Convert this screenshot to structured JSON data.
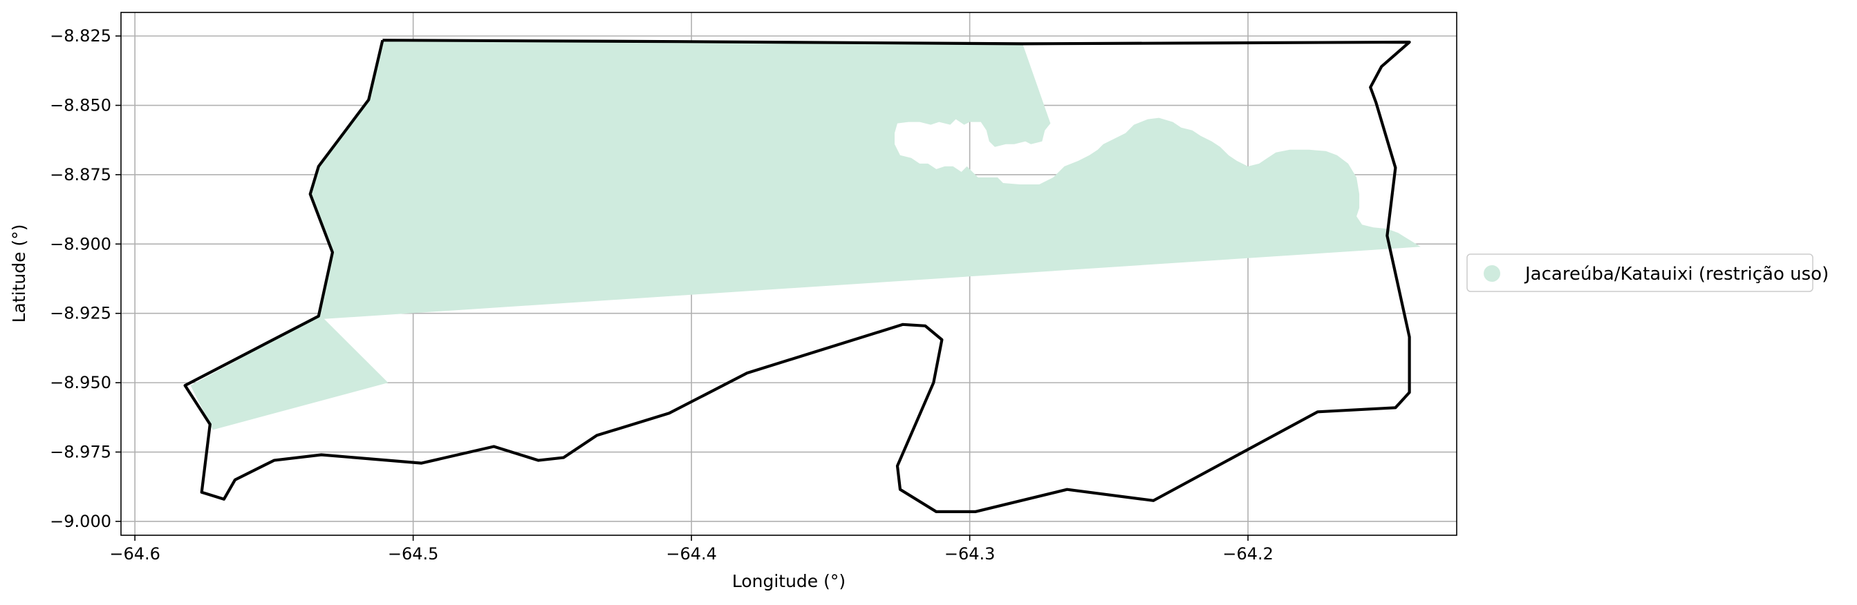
{
  "chart_data": {
    "type": "map",
    "title": "",
    "xlabel": "Longitude (°)",
    "ylabel": "Latitude (°)",
    "xlim": [
      -64.605,
      -64.125
    ],
    "ylim": [
      -9.005,
      -8.8165
    ],
    "grid": true,
    "xticks": [
      {
        "value": -64.6,
        "label": "−64.6"
      },
      {
        "value": -64.5,
        "label": "−64.5"
      },
      {
        "value": -64.4,
        "label": "−64.4"
      },
      {
        "value": -64.3,
        "label": "−64.3"
      },
      {
        "value": -64.2,
        "label": "−64.2"
      }
    ],
    "yticks": [
      {
        "value": -8.825,
        "label": "−8.825"
      },
      {
        "value": -8.85,
        "label": "−8.850"
      },
      {
        "value": -8.875,
        "label": "−8.875"
      },
      {
        "value": -8.9,
        "label": "−8.900"
      },
      {
        "value": -8.925,
        "label": "−8.925"
      },
      {
        "value": -8.95,
        "label": "−8.950"
      },
      {
        "value": -8.975,
        "label": "−8.975"
      },
      {
        "value": -9.0,
        "label": "−9.000"
      }
    ],
    "legend": {
      "placement": "right",
      "entries": [
        {
          "label": "Jacareúba/Katauixi (restrição uso)",
          "color": "#cfebde",
          "marker": "circle"
        }
      ]
    },
    "layers": [
      {
        "name": "Jacareúba/Katauixi (restrição uso)",
        "kind": "fill",
        "color": "#cfebde",
        "coords": [
          [
            -64.511,
            -8.8265
          ],
          [
            -64.405,
            -8.827
          ],
          [
            -64.281,
            -8.8278
          ],
          [
            -64.271,
            -8.8565
          ],
          [
            -64.273,
            -8.859
          ],
          [
            -64.274,
            -8.863
          ],
          [
            -64.278,
            -8.864
          ],
          [
            -64.28,
            -8.863
          ],
          [
            -64.284,
            -8.864
          ],
          [
            -64.287,
            -8.864
          ],
          [
            -64.291,
            -8.865
          ],
          [
            -64.293,
            -8.863
          ],
          [
            -64.294,
            -8.859
          ],
          [
            -64.296,
            -8.856
          ],
          [
            -64.3,
            -8.856
          ],
          [
            -64.302,
            -8.857
          ],
          [
            -64.305,
            -8.855
          ],
          [
            -64.307,
            -8.857
          ],
          [
            -64.311,
            -8.856
          ],
          [
            -64.314,
            -8.857
          ],
          [
            -64.318,
            -8.856
          ],
          [
            -64.322,
            -8.856
          ],
          [
            -64.326,
            -8.8565
          ],
          [
            -64.327,
            -8.86
          ],
          [
            -64.327,
            -8.864
          ],
          [
            -64.325,
            -8.868
          ],
          [
            -64.321,
            -8.869
          ],
          [
            -64.318,
            -8.871
          ],
          [
            -64.315,
            -8.871
          ],
          [
            -64.312,
            -8.873
          ],
          [
            -64.309,
            -8.872
          ],
          [
            -64.306,
            -8.872
          ],
          [
            -64.303,
            -8.874
          ],
          [
            -64.301,
            -8.872
          ],
          [
            -64.299,
            -8.874
          ],
          [
            -64.297,
            -8.876
          ],
          [
            -64.29,
            -8.876
          ],
          [
            -64.288,
            -8.878
          ],
          [
            -64.282,
            -8.8785
          ],
          [
            -64.275,
            -8.8785
          ],
          [
            -64.27,
            -8.876
          ],
          [
            -64.266,
            -8.872
          ],
          [
            -64.261,
            -8.87
          ],
          [
            -64.257,
            -8.868
          ],
          [
            -64.254,
            -8.866
          ],
          [
            -64.252,
            -8.864
          ],
          [
            -64.248,
            -8.862
          ],
          [
            -64.244,
            -8.86
          ],
          [
            -64.241,
            -8.857
          ],
          [
            -64.236,
            -8.855
          ],
          [
            -64.232,
            -8.8545
          ],
          [
            -64.227,
            -8.856
          ],
          [
            -64.224,
            -8.858
          ],
          [
            -64.22,
            -8.859
          ],
          [
            -64.217,
            -8.861
          ],
          [
            -64.213,
            -8.863
          ],
          [
            -64.21,
            -8.865
          ],
          [
            -64.207,
            -8.868
          ],
          [
            -64.204,
            -8.87
          ],
          [
            -64.2,
            -8.872
          ],
          [
            -64.196,
            -8.871
          ],
          [
            -64.193,
            -8.869
          ],
          [
            -64.19,
            -8.867
          ],
          [
            -64.185,
            -8.866
          ],
          [
            -64.178,
            -8.866
          ],
          [
            -64.172,
            -8.8665
          ],
          [
            -64.168,
            -8.868
          ],
          [
            -64.164,
            -8.871
          ],
          [
            -64.161,
            -8.876
          ],
          [
            -64.16,
            -8.882
          ],
          [
            -64.16,
            -8.887
          ],
          [
            -64.161,
            -8.89
          ],
          [
            -64.159,
            -8.893
          ],
          [
            -64.155,
            -8.894
          ],
          [
            -64.15,
            -8.8945
          ],
          [
            -64.146,
            -8.896
          ],
          [
            -64.142,
            -8.8985
          ],
          [
            -64.138,
            -8.901
          ],
          [
            -64.532,
            -8.927
          ],
          [
            -64.509,
            -8.95
          ],
          [
            -64.572,
            -8.967
          ],
          [
            -64.58,
            -8.951
          ],
          [
            -64.534,
            -8.926
          ],
          [
            -64.529,
            -8.903
          ],
          [
            -64.537,
            -8.882
          ],
          [
            -64.534,
            -8.872
          ],
          [
            -64.516,
            -8.848
          ]
        ]
      },
      {
        "name": "boundary",
        "kind": "line",
        "color": "#000000",
        "coords": [
          [
            -64.511,
            -8.8265
          ],
          [
            -64.405,
            -8.827
          ],
          [
            -64.281,
            -8.8278
          ],
          [
            -64.142,
            -8.8272
          ],
          [
            -64.152,
            -8.836
          ],
          [
            -64.156,
            -8.8435
          ],
          [
            -64.154,
            -8.849
          ],
          [
            -64.147,
            -8.8725
          ],
          [
            -64.15,
            -8.897
          ],
          [
            -64.142,
            -8.9335
          ],
          [
            -64.142,
            -8.9535
          ],
          [
            -64.147,
            -8.959
          ],
          [
            -64.175,
            -8.9605
          ],
          [
            -64.234,
            -8.9925
          ],
          [
            -64.265,
            -8.9885
          ],
          [
            -64.298,
            -8.9965
          ],
          [
            -64.312,
            -8.9965
          ],
          [
            -64.325,
            -8.9885
          ],
          [
            -64.326,
            -8.98
          ],
          [
            -64.313,
            -8.95
          ],
          [
            -64.31,
            -8.9345
          ],
          [
            -64.316,
            -8.9295
          ],
          [
            -64.324,
            -8.929
          ],
          [
            -64.38,
            -8.9465
          ],
          [
            -64.408,
            -8.961
          ],
          [
            -64.434,
            -8.969
          ],
          [
            -64.446,
            -8.977
          ],
          [
            -64.455,
            -8.978
          ],
          [
            -64.471,
            -8.973
          ],
          [
            -64.497,
            -8.979
          ],
          [
            -64.533,
            -8.976
          ],
          [
            -64.55,
            -8.978
          ],
          [
            -64.564,
            -8.985
          ],
          [
            -64.568,
            -8.992
          ],
          [
            -64.576,
            -8.9895
          ],
          [
            -64.573,
            -8.965
          ],
          [
            -64.582,
            -8.951
          ],
          [
            -64.534,
            -8.926
          ],
          [
            -64.529,
            -8.903
          ],
          [
            -64.537,
            -8.882
          ],
          [
            -64.534,
            -8.872
          ],
          [
            -64.516,
            -8.848
          ],
          [
            -64.511,
            -8.8265
          ]
        ]
      }
    ]
  }
}
